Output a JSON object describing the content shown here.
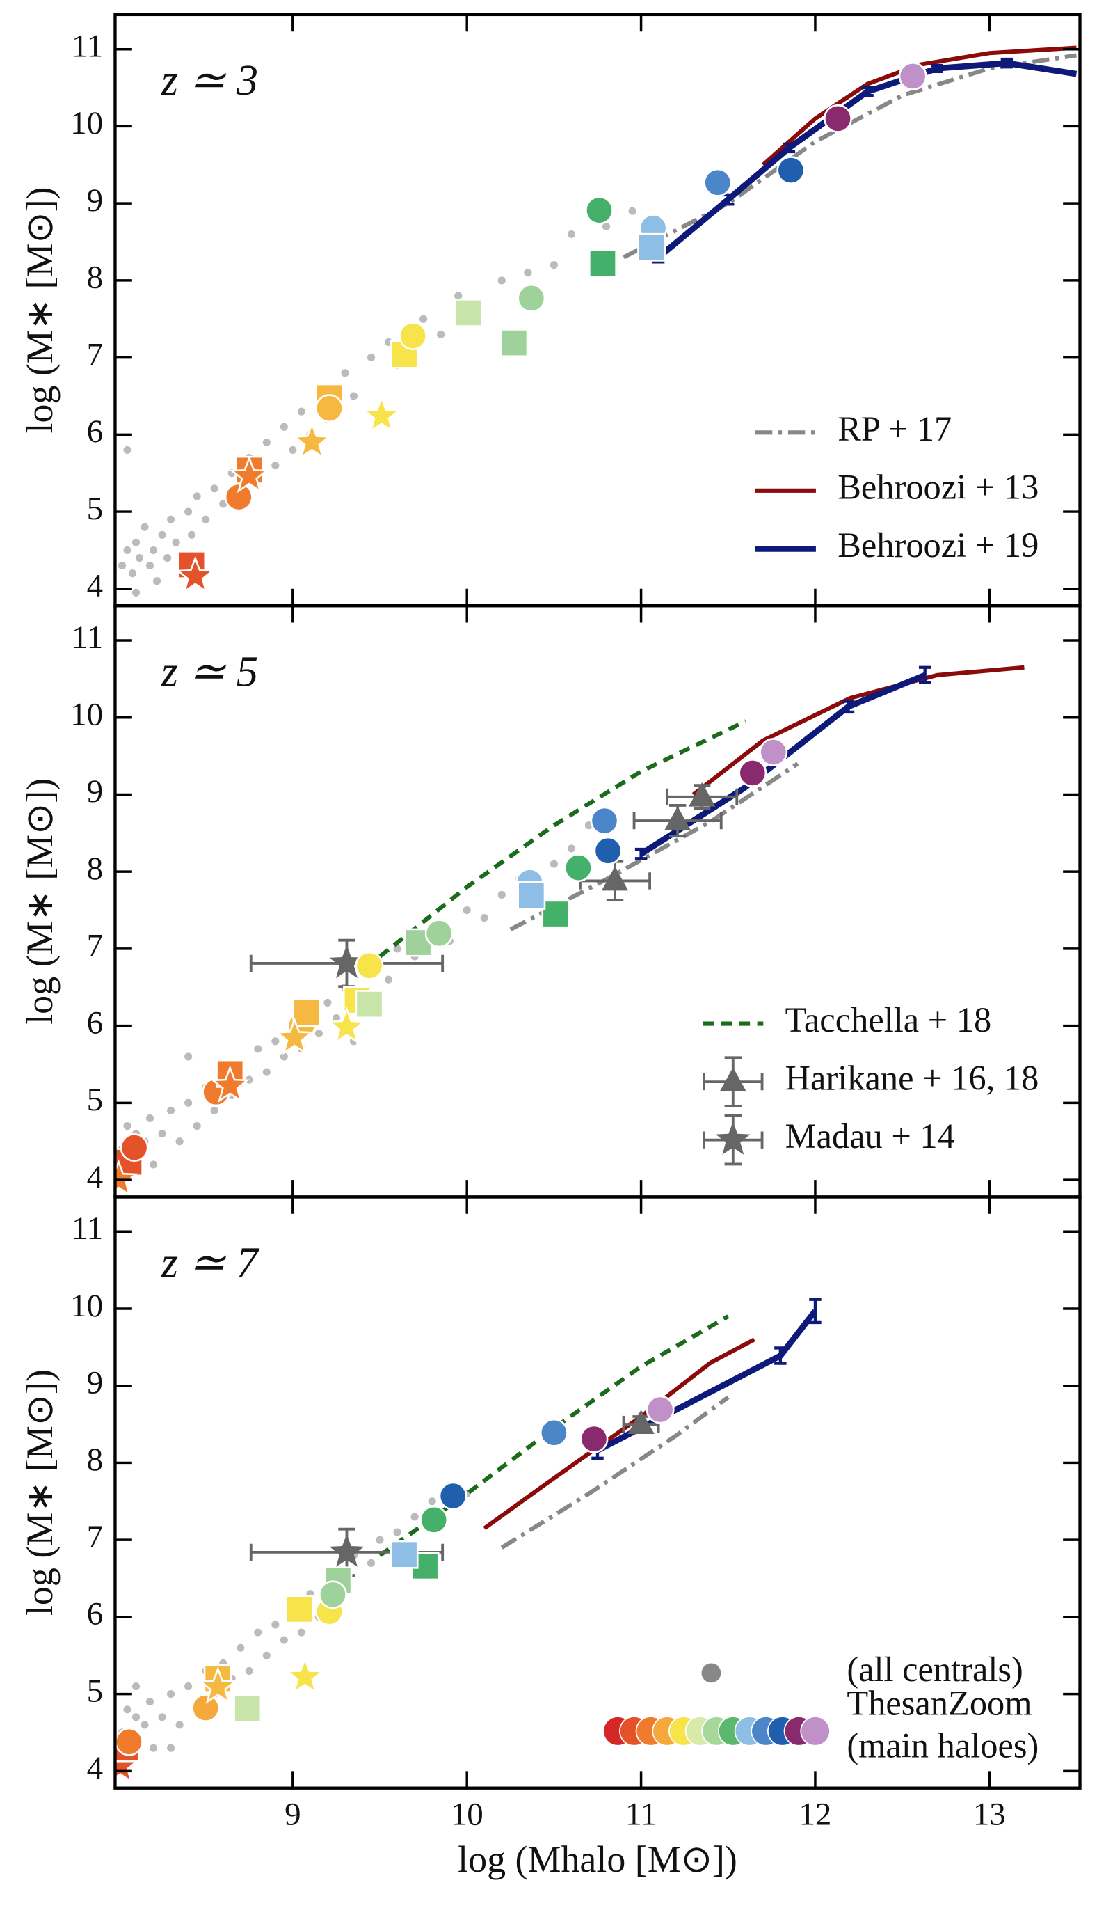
{
  "chart_data": [
    {
      "type": "scatter",
      "title": "z ≃ 3",
      "ylabel": "log (M∗ [M⊙])",
      "xlim": [
        7.98,
        13.52
      ],
      "ylim": [
        3.78,
        11.45
      ],
      "xticks": [
        9,
        10,
        11,
        12,
        13
      ],
      "yticks": [
        4,
        5,
        6,
        7,
        8,
        9,
        10,
        11
      ],
      "show_xtick_labels": false,
      "legend": "lower right",
      "series": [
        {
          "marker": "o",
          "color": "#bbbbbb",
          "x": [
            8.02,
            8.05,
            8.08,
            8.1,
            8.12,
            8.15,
            8.18,
            8.2,
            8.22,
            8.25,
            8.28,
            8.3,
            8.33,
            8.36,
            8.4,
            8.42,
            8.45,
            8.5,
            8.55,
            8.6,
            8.65,
            8.7,
            8.75,
            8.8,
            8.85,
            8.9,
            8.95,
            9.0,
            9.05,
            9.1,
            9.15,
            9.2,
            9.3,
            9.35,
            9.45,
            9.55,
            9.6,
            9.75,
            9.85,
            9.95,
            10.05,
            10.2,
            10.35,
            10.5,
            10.6,
            10.8,
            10.95,
            11.1,
            8.05,
            8.1
          ],
          "y": [
            4.3,
            4.5,
            4.2,
            4.6,
            4.4,
            4.8,
            4.3,
            4.5,
            4.1,
            4.7,
            4.4,
            4.9,
            4.6,
            4.3,
            5.0,
            4.7,
            5.2,
            4.9,
            5.3,
            5.1,
            5.5,
            5.2,
            5.7,
            5.4,
            5.9,
            5.6,
            6.1,
            5.8,
            6.3,
            6.0,
            6.6,
            6.2,
            6.8,
            6.5,
            7.0,
            7.2,
            6.9,
            7.5,
            7.3,
            7.8,
            7.6,
            8.0,
            8.1,
            8.2,
            8.6,
            8.7,
            8.9,
            8.7,
            5.8,
            3.95
          ]
        },
        {
          "name": "RP + 17",
          "style": "dashdot",
          "color": "#888888",
          "x": [
            10.9,
            11.5,
            12.0,
            12.5,
            13.0,
            13.5
          ],
          "y": [
            8.3,
            9.0,
            9.8,
            10.4,
            10.75,
            10.92
          ]
        },
        {
          "name": "Behroozi + 13",
          "style": "solid",
          "color": "#8b0a0a",
          "x": [
            11.7,
            12.0,
            12.3,
            12.6,
            13.0,
            13.5
          ],
          "y": [
            9.5,
            10.1,
            10.55,
            10.8,
            10.95,
            11.02
          ]
        },
        {
          "name": "Behroozi + 19",
          "style": "solid",
          "color": "#0d1a7a",
          "width": 5,
          "x": [
            11.1,
            11.5,
            11.85,
            12.3,
            12.7,
            13.1,
            13.5
          ],
          "y": [
            8.3,
            9.05,
            9.72,
            10.45,
            10.75,
            10.82,
            10.68
          ],
          "yerr": [
            0.06,
            0.06,
            0.05,
            0.05,
            0.04,
            0.05,
            null
          ]
        },
        {
          "x": [
            8.42,
            8.44,
            8.69,
            8.75,
            8.75,
            9.21,
            9.21,
            9.11,
            9.64,
            9.69,
            9.51,
            10.01,
            10.27,
            10.37,
            10.78,
            10.76,
            11.07,
            11.06,
            11.44,
            11.86,
            12.13,
            12.56
          ],
          "y": [
            4.31,
            4.16,
            5.19,
            5.54,
            5.46,
            6.48,
            6.34,
            5.9,
            7.04,
            7.28,
            6.24,
            7.58,
            7.19,
            7.77,
            8.22,
            8.91,
            8.68,
            8.43,
            9.27,
            9.43,
            10.1,
            10.65
          ],
          "markers": [
            "s",
            "*",
            "o",
            "s",
            "*",
            "s",
            "o",
            "*",
            "s",
            "o",
            "*",
            "s",
            "s",
            "o",
            "s",
            "o",
            "o",
            "s",
            "o",
            "o",
            "o",
            "o"
          ],
          "colors": [
            "#e4522a",
            "#e4522a",
            "#f07b2d",
            "#f07b2d",
            "#f07b2d",
            "#f5b942",
            "#f5b942",
            "#f5b942",
            "#f7e34a",
            "#f7e34a",
            "#f7e34a",
            "#c9e4a8",
            "#9fd19a",
            "#9fd19a",
            "#45b06a",
            "#45b06a",
            "#8ebde6",
            "#8ebde6",
            "#4a86c8",
            "#1f5fae",
            "#8a2a6e",
            "#c090c8"
          ]
        }
      ]
    },
    {
      "type": "scatter",
      "title": "z ≃ 5",
      "ylabel": "log (M∗ [M⊙])",
      "xlim": [
        7.98,
        13.52
      ],
      "ylim": [
        3.78,
        11.45
      ],
      "xticks": [
        9,
        10,
        11,
        12,
        13
      ],
      "yticks": [
        4,
        5,
        6,
        7,
        8,
        9,
        10,
        11
      ],
      "show_xtick_labels": false,
      "legend": "lower right",
      "series": [
        {
          "marker": "o",
          "color": "#bbbbbb",
          "x": [
            8.02,
            8.05,
            8.08,
            8.1,
            8.15,
            8.18,
            8.2,
            8.25,
            8.3,
            8.35,
            8.4,
            8.45,
            8.5,
            8.55,
            8.6,
            8.65,
            8.7,
            8.75,
            8.8,
            8.85,
            8.9,
            8.95,
            9.0,
            9.05,
            9.1,
            9.15,
            9.2,
            9.25,
            9.3,
            9.4,
            9.45,
            9.55,
            9.6,
            9.7,
            9.8,
            9.9,
            10.0,
            10.1,
            10.2,
            10.3,
            10.4,
            10.5,
            10.6,
            10.7,
            9.35,
            8.4
          ],
          "y": [
            4.4,
            4.7,
            4.3,
            4.6,
            4.5,
            4.8,
            4.2,
            4.6,
            4.9,
            4.5,
            5.0,
            4.7,
            5.2,
            4.9,
            5.4,
            5.1,
            5.5,
            5.3,
            5.7,
            5.4,
            5.8,
            5.6,
            6.0,
            5.7,
            6.2,
            5.9,
            6.3,
            6.1,
            6.5,
            6.3,
            6.8,
            6.6,
            7.0,
            6.9,
            7.2,
            7.1,
            7.5,
            7.4,
            7.7,
            7.9,
            7.7,
            8.1,
            8.3,
            8.6,
            5.8,
            5.6
          ]
        },
        {
          "style": "dashdot",
          "color": "#888888",
          "x": [
            10.25,
            10.8,
            11.4,
            11.9
          ],
          "y": [
            7.25,
            7.9,
            8.65,
            9.4
          ]
        },
        {
          "style": "solid",
          "color": "#8b0a0a",
          "x": [
            11.3,
            11.7,
            12.2,
            12.7,
            13.2
          ],
          "y": [
            9.0,
            9.7,
            10.25,
            10.55,
            10.65
          ]
        },
        {
          "style": "solid",
          "color": "#0d1a7a",
          "width": 5,
          "x": [
            11.0,
            11.59,
            12.19,
            12.63
          ],
          "y": [
            8.23,
            9.08,
            10.14,
            10.55
          ],
          "yerr": [
            0.06,
            null,
            0.07,
            0.1
          ]
        },
        {
          "name": "Tacchella + 18",
          "style": "dashed",
          "color": "#1a6b1a",
          "x": [
            9.5,
            10.0,
            10.5,
            11.0,
            11.6
          ],
          "y": [
            6.9,
            7.8,
            8.6,
            9.3,
            9.95
          ]
        },
        {
          "name": "Harikane + 16, 18",
          "marker": "^",
          "color": "#666666",
          "x": [
            10.85,
            11.21,
            11.35
          ],
          "y": [
            7.88,
            8.66,
            8.97
          ],
          "xerr": [
            0.2,
            0.25,
            0.2
          ],
          "yerr": [
            0.25,
            0.2,
            0.15
          ]
        },
        {
          "name": "Madau + 14",
          "marker": "*",
          "color": "#666666",
          "x": [
            9.31
          ],
          "y": [
            6.81
          ],
          "xerr": [
            0.55
          ],
          "yerr": [
            0.3
          ]
        },
        {
          "x": [
            8.06,
            8.09,
            8.0,
            8.56,
            8.64,
            8.64,
            9.05,
            9.08,
            9.01,
            9.44,
            9.37,
            9.31,
            9.44,
            9.72,
            9.84,
            10.51,
            10.64,
            10.36,
            10.37,
            10.79,
            10.81,
            11.64,
            11.76
          ],
          "y": [
            4.23,
            4.42,
            4.0,
            5.14,
            5.38,
            5.22,
            6.0,
            6.17,
            5.84,
            6.78,
            6.33,
            5.98,
            6.28,
            7.08,
            7.2,
            7.45,
            8.05,
            7.86,
            7.69,
            8.66,
            8.27,
            9.28,
            9.55
          ],
          "markers": [
            "s",
            "o",
            "*",
            "o",
            "s",
            "*",
            "o",
            "s",
            "*",
            "o",
            "s",
            "*",
            "s",
            "s",
            "o",
            "s",
            "o",
            "o",
            "s",
            "o",
            "o",
            "o",
            "o"
          ],
          "colors": [
            "#e4522a",
            "#e4522a",
            "#f07b2d",
            "#f07b2d",
            "#f07b2d",
            "#f07b2d",
            "#f5b942",
            "#f5b942",
            "#f5b942",
            "#f7e34a",
            "#f7e34a",
            "#f7e34a",
            "#c9e4a8",
            "#9fd19a",
            "#9fd19a",
            "#45b06a",
            "#45b06a",
            "#8ebde6",
            "#8ebde6",
            "#4a86c8",
            "#1f5fae",
            "#8a2a6e",
            "#c090c8"
          ]
        }
      ]
    },
    {
      "type": "scatter",
      "title": "z ≃ 7",
      "ylabel": "log (M∗ [M⊙])",
      "xlabel": "log (Mhalo [M⊙])",
      "xlim": [
        7.98,
        13.52
      ],
      "ylim": [
        3.78,
        11.45
      ],
      "xticks": [
        9,
        10,
        11,
        12,
        13
      ],
      "yticks": [
        4,
        5,
        6,
        7,
        8,
        9,
        10,
        11
      ],
      "show_xtick_labels": true,
      "legend": "lower right",
      "series": [
        {
          "name": [
            "(all centrals)"
          ],
          "marker": "o",
          "color": "#bbbbbb",
          "legend_color": "#888888",
          "x": [
            8.02,
            8.05,
            8.08,
            8.1,
            8.15,
            8.18,
            8.2,
            8.25,
            8.3,
            8.35,
            8.4,
            8.45,
            8.5,
            8.55,
            8.6,
            8.65,
            8.7,
            8.75,
            8.8,
            8.85,
            8.9,
            8.95,
            9.0,
            9.05,
            9.1,
            9.15,
            9.2,
            9.3,
            9.35,
            9.45,
            9.5,
            9.6,
            9.7,
            9.8,
            9.9,
            10.0,
            8.1,
            8.3
          ],
          "y": [
            4.5,
            4.8,
            4.4,
            4.7,
            4.6,
            4.9,
            4.3,
            4.7,
            5.0,
            4.6,
            5.1,
            4.8,
            5.3,
            5.0,
            5.4,
            5.2,
            5.6,
            5.3,
            5.8,
            5.5,
            5.9,
            5.7,
            6.1,
            5.8,
            6.3,
            6.0,
            6.5,
            6.4,
            6.8,
            6.7,
            7.0,
            7.1,
            7.3,
            7.5,
            7.7,
            7.6,
            5.1,
            4.3
          ]
        },
        {
          "style": "dashdot",
          "color": "#888888",
          "x": [
            10.2,
            10.7,
            11.2,
            11.5
          ],
          "y": [
            6.9,
            7.6,
            8.35,
            8.85
          ]
        },
        {
          "style": "solid",
          "color": "#8b0a0a",
          "x": [
            10.1,
            10.5,
            11.0,
            11.4,
            11.65
          ],
          "y": [
            7.15,
            7.8,
            8.6,
            9.3,
            9.6
          ]
        },
        {
          "style": "solid",
          "color": "#0d1a7a",
          "width": 5,
          "x": [
            10.75,
            11.8,
            12.0
          ],
          "y": [
            8.16,
            9.39,
            9.97
          ],
          "yerr": [
            0.1,
            0.1,
            0.15
          ]
        },
        {
          "style": "dashed",
          "color": "#1a6b1a",
          "x": [
            9.5,
            10.0,
            10.5,
            11.0,
            11.5
          ],
          "y": [
            6.8,
            7.6,
            8.45,
            9.25,
            9.9
          ]
        },
        {
          "marker": "^",
          "color": "#666666",
          "x": [
            11.0
          ],
          "y": [
            8.5
          ],
          "xerr": [
            0.1
          ],
          "yerr": [
            0.1
          ]
        },
        {
          "marker": "*",
          "color": "#666666",
          "x": [
            9.31
          ],
          "y": [
            6.84
          ],
          "xerr": [
            0.55
          ],
          "yerr": [
            0.3
          ]
        },
        {
          "name": [
            "ThesanZoom",
            "(main haloes)"
          ],
          "palette": [
            "#d62728",
            "#e4522a",
            "#f07b2d",
            "#f5a93a",
            "#f7e34a",
            "#d8eaa8",
            "#a8d79a",
            "#5cb86e",
            "#8ebde6",
            "#4a86c8",
            "#1f5fae",
            "#8a2a6e",
            "#c090c8"
          ],
          "x": [
            8.01,
            8.04,
            8.06,
            8.5,
            8.57,
            8.57,
            9.04,
            9.21,
            9.07,
            8.74,
            9.26,
            9.23,
            9.76,
            9.81,
            9.64,
            9.92,
            10.5,
            10.73,
            11.11
          ],
          "y": [
            4.06,
            4.3,
            4.38,
            4.82,
            5.2,
            5.09,
            6.1,
            6.07,
            5.22,
            4.81,
            6.47,
            6.29,
            6.66,
            7.26,
            6.81,
            7.57,
            8.39,
            8.31,
            8.69
          ],
          "markers": [
            "*",
            "s",
            "o",
            "o",
            "s",
            "*",
            "s",
            "o",
            "*",
            "s",
            "s",
            "o",
            "s",
            "o",
            "s",
            "o",
            "o",
            "o",
            "o"
          ],
          "colors": [
            "#e4522a",
            "#e4522a",
            "#f07b2d",
            "#f5a93a",
            "#f5b942",
            "#f5b942",
            "#f7e34a",
            "#f7e34a",
            "#f7e34a",
            "#c9e4a8",
            "#9fd19a",
            "#9fd19a",
            "#45b06a",
            "#45b06a",
            "#8ebde6",
            "#1f5fae",
            "#4a86c8",
            "#8a2a6e",
            "#c090c8"
          ]
        }
      ]
    }
  ]
}
